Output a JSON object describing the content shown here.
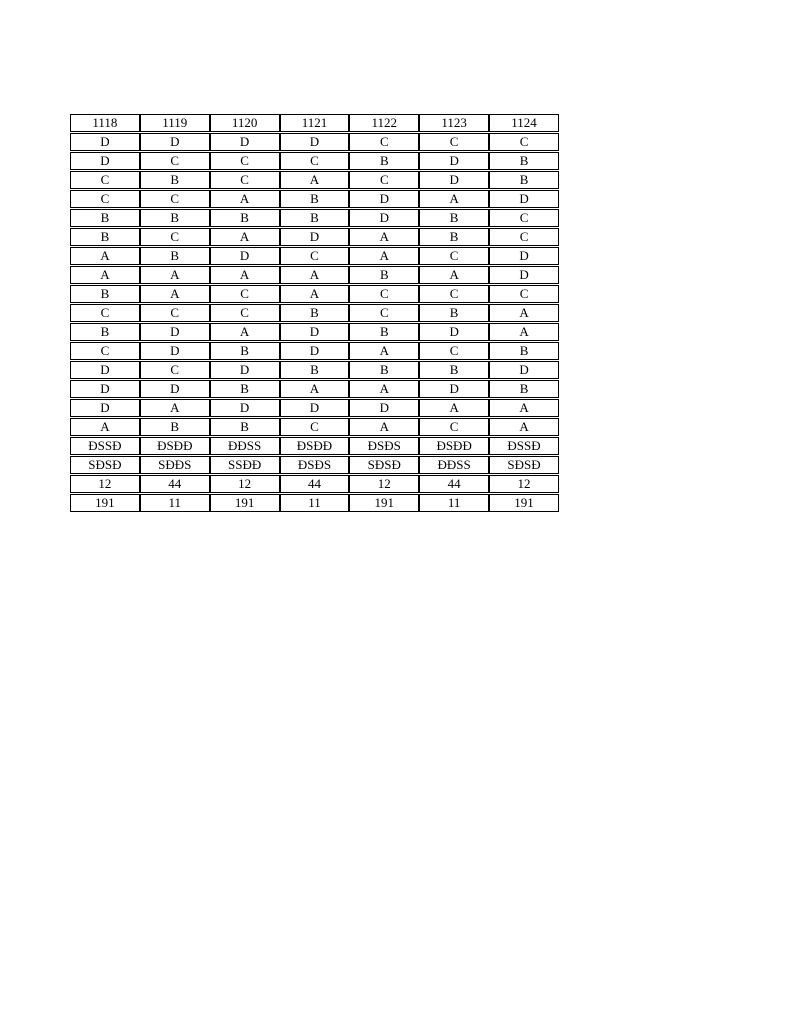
{
  "page": {
    "background_color": "#ffffff",
    "text_color": "#000000",
    "border_color": "#000000"
  },
  "table": {
    "header": [
      "1118",
      "1119",
      "1120",
      "1121",
      "1122",
      "1123",
      "1124"
    ],
    "rows": [
      [
        "D",
        "D",
        "D",
        "D",
        "C",
        "C",
        "C"
      ],
      [
        "D",
        "C",
        "C",
        "C",
        "B",
        "D",
        "B"
      ],
      [
        "C",
        "B",
        "C",
        "A",
        "C",
        "D",
        "B"
      ],
      [
        "C",
        "C",
        "A",
        "B",
        "D",
        "A",
        "D"
      ],
      [
        "B",
        "B",
        "B",
        "B",
        "D",
        "B",
        "C"
      ],
      [
        "B",
        "C",
        "A",
        "D",
        "A",
        "B",
        "C"
      ],
      [
        "A",
        "B",
        "D",
        "C",
        "A",
        "C",
        "D"
      ],
      [
        "A",
        "A",
        "A",
        "A",
        "B",
        "A",
        "D"
      ],
      [
        "B",
        "A",
        "C",
        "A",
        "C",
        "C",
        "C"
      ],
      [
        "C",
        "C",
        "C",
        "B",
        "C",
        "B",
        "A"
      ],
      [
        "B",
        "D",
        "A",
        "D",
        "B",
        "D",
        "A"
      ],
      [
        "C",
        "D",
        "B",
        "D",
        "A",
        "C",
        "B"
      ],
      [
        "D",
        "C",
        "D",
        "B",
        "B",
        "B",
        "D"
      ],
      [
        "D",
        "D",
        "B",
        "A",
        "A",
        "D",
        "B"
      ],
      [
        "D",
        "A",
        "D",
        "D",
        "D",
        "A",
        "A"
      ],
      [
        "A",
        "B",
        "B",
        "C",
        "A",
        "C",
        "A"
      ],
      [
        "ĐSSĐ",
        "ĐSĐĐ",
        "ĐĐSS",
        "ĐSĐĐ",
        "ĐSĐS",
        "ĐSĐĐ",
        "ĐSSĐ"
      ],
      [
        "SĐSĐ",
        "SĐĐS",
        "SSĐĐ",
        "ĐSĐS",
        "SĐSĐ",
        "ĐĐSS",
        "SĐSĐ"
      ],
      [
        "12",
        "44",
        "12",
        "44",
        "12",
        "44",
        "12"
      ],
      [
        "191",
        "11",
        "191",
        "11",
        "191",
        "11",
        "191"
      ]
    ]
  }
}
